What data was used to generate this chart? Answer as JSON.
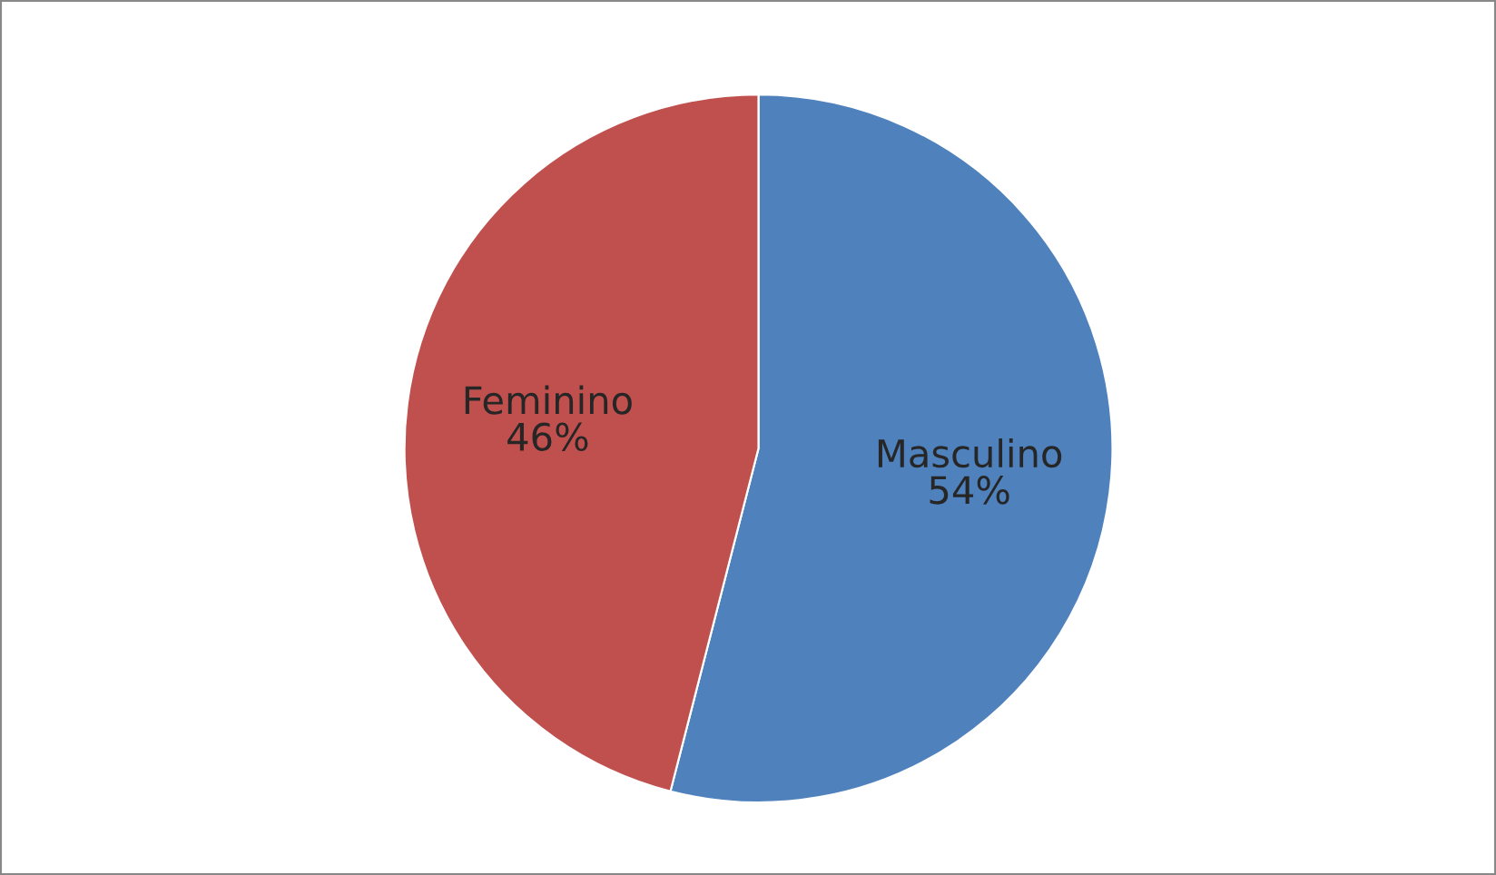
{
  "chart_data": {
    "type": "pie",
    "categories": [
      "Masculino",
      "Feminino"
    ],
    "values": [
      54,
      46
    ],
    "value_labels": [
      "54%",
      "46%"
    ],
    "colors": [
      "#4f81bd",
      "#c0504d"
    ],
    "legend": false
  }
}
